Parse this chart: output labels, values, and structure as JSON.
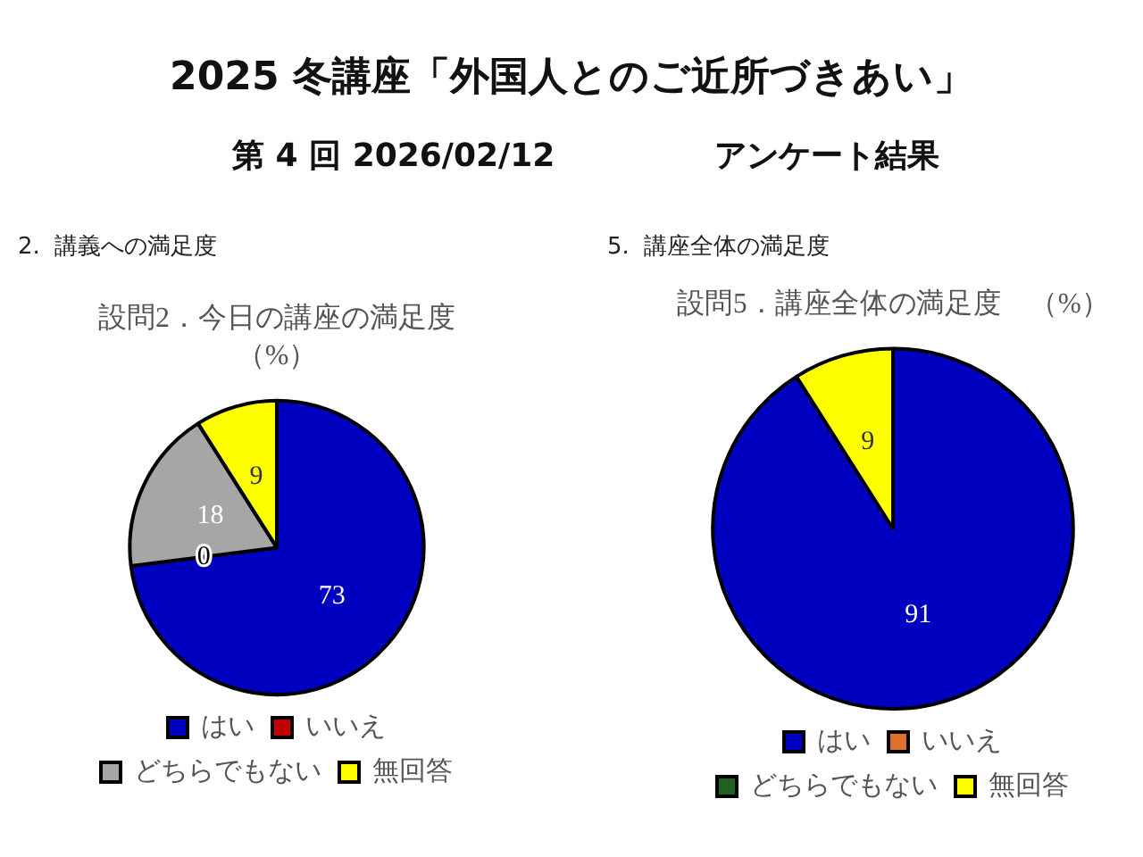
{
  "chart_data": [
    {
      "type": "other",
      "title": "2025 冬講座「外国人とのご近所づきあい」",
      "subtitle": "第 4 回 2026/02/12",
      "annotations": [
        "アンケート結果"
      ]
    },
    {
      "type": "pie",
      "title": "設問2．今日の講座の満足度",
      "subtitle": "（%）",
      "annotations": [
        "2.  講義への満足度"
      ],
      "categories": [
        "はい",
        "いいえ",
        "どちらでもない",
        "無回答"
      ],
      "values": [
        73,
        0,
        18,
        9
      ],
      "colors": [
        "#0000c0",
        "#c00000",
        "#a6a6a6",
        "#ffff00"
      ],
      "value_labels": [
        "73",
        "0",
        "18",
        "9"
      ],
      "legend": "bottom"
    },
    {
      "type": "pie",
      "title": "設問5．講座全体の満足度　（%）",
      "annotations": [
        "5.  講座全体の満足度"
      ],
      "categories": [
        "はい",
        "いいえ",
        "どちらでもない",
        "無回答"
      ],
      "values": [
        91,
        0,
        0,
        9
      ],
      "colors": [
        "#0000c0",
        "#e07030",
        "#206020",
        "#ffff00"
      ],
      "value_labels": [
        "91",
        null,
        null,
        "9"
      ],
      "legend": "bottom"
    }
  ]
}
